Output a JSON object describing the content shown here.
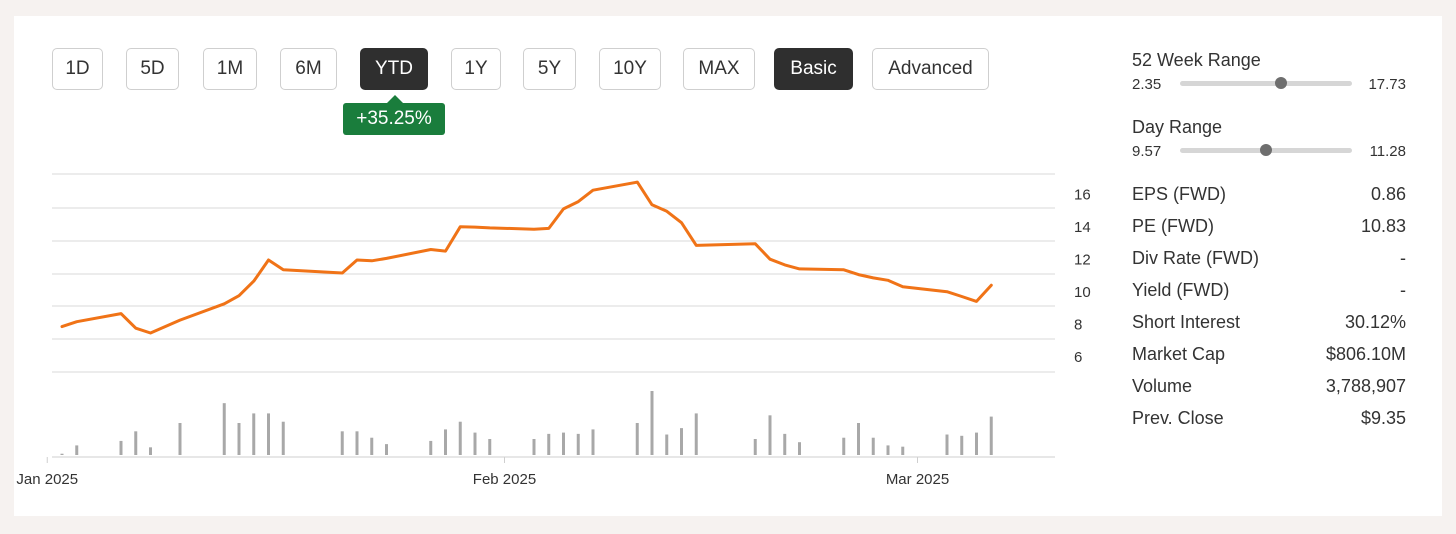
{
  "timeframes": [
    {
      "label": "1D",
      "active": false
    },
    {
      "label": "5D",
      "active": false
    },
    {
      "label": "1M",
      "active": false
    },
    {
      "label": "6M",
      "active": false
    },
    {
      "label": "YTD",
      "active": true
    },
    {
      "label": "1Y",
      "active": false
    },
    {
      "label": "5Y",
      "active": false
    },
    {
      "label": "10Y",
      "active": false
    },
    {
      "label": "MAX",
      "active": false
    }
  ],
  "view_modes": [
    {
      "label": "Basic",
      "active": true
    },
    {
      "label": "Advanced",
      "active": false
    }
  ],
  "change_badge": "+35.25%",
  "week52_range": {
    "title": "52 Week Range",
    "low": "2.35",
    "high": "17.73",
    "position": 0.59
  },
  "day_range": {
    "title": "Day Range",
    "low": "9.57",
    "high": "11.28",
    "position": 0.5
  },
  "stats": [
    {
      "label": "EPS (FWD)",
      "value": "0.86"
    },
    {
      "label": "PE (FWD)",
      "value": "10.83"
    },
    {
      "label": "Div Rate (FWD)",
      "value": "-"
    },
    {
      "label": "Yield (FWD)",
      "value": "-"
    },
    {
      "label": "Short Interest",
      "value": "30.12%"
    },
    {
      "label": "Market Cap",
      "value": "$806.10M"
    },
    {
      "label": "Volume",
      "value": "3,788,907"
    },
    {
      "label": "Prev. Close",
      "value": "$9.35"
    }
  ],
  "colors": {
    "line": "#f07317",
    "volume": "#a8a8a8",
    "grid": "#d9d9d9",
    "badge": "#1a7d3c",
    "active_button": "#2f2f2f"
  },
  "chart_data": {
    "type": "line",
    "x_tick_labels": [
      "Jan 2025",
      "Feb 2025",
      "Mar 2025"
    ],
    "y_tick_labels": [
      "6",
      "8",
      "10",
      "12",
      "14",
      "16"
    ],
    "ylim": [
      5,
      17.2
    ],
    "grid": true,
    "series": [
      {
        "type": "line",
        "x": [
          "2025-01-02",
          "2025-01-03",
          "2025-01-06",
          "2025-01-07",
          "2025-01-08",
          "2025-01-10",
          "2025-01-13",
          "2025-01-14",
          "2025-01-15",
          "2025-01-16",
          "2025-01-17",
          "2025-01-21",
          "2025-01-22",
          "2025-01-23",
          "2025-01-24",
          "2025-01-27",
          "2025-01-28",
          "2025-01-29",
          "2025-01-30",
          "2025-01-31",
          "2025-02-03",
          "2025-02-04",
          "2025-02-05",
          "2025-02-06",
          "2025-02-07",
          "2025-02-10",
          "2025-02-11",
          "2025-02-12",
          "2025-02-13",
          "2025-02-14",
          "2025-02-18",
          "2025-02-19",
          "2025-02-20",
          "2025-02-21",
          "2025-02-24",
          "2025-02-25",
          "2025-02-26",
          "2025-02-27",
          "2025-02-28",
          "2025-03-03",
          "2025-03-04",
          "2025-03-05",
          "2025-03-06"
        ],
        "values": [
          7.8,
          8.1,
          8.6,
          7.7,
          7.4,
          8.2,
          9.2,
          9.7,
          10.6,
          11.9,
          11.3,
          11.1,
          11.9,
          11.85,
          12.0,
          12.55,
          12.45,
          13.95,
          13.93,
          13.88,
          13.8,
          13.85,
          15.05,
          15.5,
          16.2,
          16.7,
          15.3,
          14.9,
          14.2,
          12.8,
          12.9,
          11.95,
          11.6,
          11.35,
          11.3,
          11.0,
          10.8,
          10.65,
          10.25,
          9.95,
          9.65,
          9.35,
          10.35
        ]
      },
      {
        "type": "bar",
        "name": "Volume (relative)",
        "values": [
          0.02,
          0.15,
          0.22,
          0.37,
          0.12,
          0.5,
          0.81,
          0.5,
          0.65,
          0.65,
          0.52,
          0.37,
          0.37,
          0.27,
          0.17,
          0.22,
          0.4,
          0.52,
          0.35,
          0.25,
          0.25,
          0.33,
          0.35,
          0.33,
          0.4,
          0.5,
          1.0,
          0.32,
          0.42,
          0.65,
          0.25,
          0.62,
          0.33,
          0.2,
          0.27,
          0.5,
          0.27,
          0.15,
          0.13,
          0.32,
          0.3,
          0.35,
          0.6
        ]
      }
    ]
  }
}
